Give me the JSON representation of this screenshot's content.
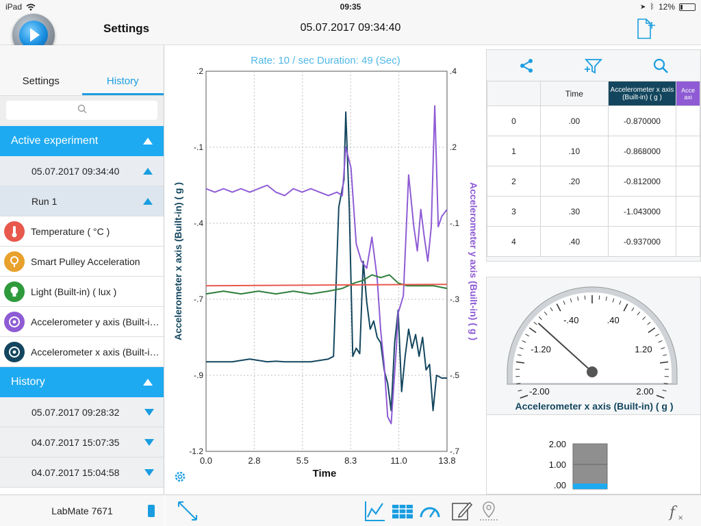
{
  "status": {
    "device": "iPad",
    "time": "09:35",
    "battery": "12%"
  },
  "header": {
    "title": "Settings",
    "date": "05.07.2017 09:34:40"
  },
  "sidebar": {
    "tabs": [
      {
        "label": "Settings"
      },
      {
        "label": "History"
      }
    ],
    "active_section": "Active experiment",
    "experiment_date": "05.07.2017 09:34:40",
    "run": "Run 1",
    "sensors": [
      {
        "label": "Temperature ( °C )",
        "color": "#e8584d"
      },
      {
        "label": "Smart Pulley Acceleration",
        "color": "#e8a12c"
      },
      {
        "label": "Light (Built-in) ( lux )",
        "color": "#2e9a3c"
      },
      {
        "label": "Accelerometer y axis (Built-in) ( g )",
        "color": "#8e5bd4"
      },
      {
        "label": "Accelerometer x axis (Built-in) ( g )",
        "color": "#13465e"
      }
    ],
    "history_section": "History",
    "history": [
      {
        "label": "05.07.2017 09:28:32"
      },
      {
        "label": "04.07.2017 15:07:35"
      },
      {
        "label": "04.07.2017 15:04:58"
      }
    ],
    "footer": "LabMate 7671"
  },
  "chart_data": {
    "type": "line",
    "title": "Rate: 10 / sec  Duration: 49 (Sec)",
    "xlabel": "Time",
    "ylabel_left": "Accelerometer x axis (Built-in) ( g )",
    "ylabel_right": "Accelerometer y axis (Built-in) ( g )",
    "x_ticks": [
      "0.0",
      "2.8",
      "5.5",
      "8.3",
      "11.0",
      "13.8"
    ],
    "y_left_ticks": [
      ".2",
      "-.1",
      "-.4",
      "-.7",
      "-.9",
      "-1.2"
    ],
    "y_right_ticks": [
      ".4",
      ".2",
      "-.1",
      "-.3",
      "-.5",
      "-.7"
    ],
    "xlim": [
      0,
      13.8
    ],
    "ylim_left": [
      -1.2,
      0.2
    ],
    "ylim_right": [
      -0.7,
      0.4
    ],
    "grid": true,
    "series": [
      {
        "color": "#13465e",
        "axis": "left",
        "x": [
          0,
          0.5,
          1,
          1.5,
          2,
          2.5,
          3,
          3.5,
          4,
          4.5,
          5,
          5.5,
          6,
          6.5,
          7,
          7.3,
          7.6,
          7.9,
          8.0,
          8.2,
          8.4,
          8.6,
          8.8,
          9.0,
          9.2,
          9.4,
          9.6,
          9.8,
          10.0,
          10.2,
          10.4,
          10.6,
          10.8,
          11.0,
          11.2,
          11.4,
          11.6,
          11.8,
          12.0,
          12.2,
          12.4,
          12.6,
          12.8,
          13.0,
          13.2,
          13.5,
          13.8
        ],
        "y": [
          -0.87,
          -0.87,
          -0.87,
          -0.87,
          -0.865,
          -0.86,
          -0.865,
          -0.87,
          -0.868,
          -0.87,
          -0.87,
          -0.87,
          -0.87,
          -0.865,
          -0.86,
          -0.85,
          -0.3,
          -0.2,
          0.05,
          -0.3,
          -0.85,
          -0.82,
          -0.84,
          -0.5,
          -0.65,
          -0.75,
          -0.72,
          -0.78,
          -0.8,
          -0.9,
          -0.95,
          -1.05,
          -0.8,
          -0.68,
          -0.98,
          -0.85,
          -0.75,
          -0.82,
          -0.77,
          -0.85,
          -0.78,
          -0.9,
          -0.88,
          -1.05,
          -0.92,
          -0.93,
          -0.93
        ]
      },
      {
        "color": "#8e5bd4",
        "axis": "right",
        "x": [
          0,
          0.5,
          1,
          1.5,
          2,
          2.5,
          3,
          3.5,
          4,
          4.5,
          5,
          5.5,
          6,
          6.5,
          7,
          7.5,
          7.8,
          8.0,
          8.3,
          8.6,
          8.9,
          9.2,
          9.5,
          9.8,
          10.0,
          10.2,
          10.4,
          10.6,
          10.9,
          11.0,
          11.3,
          11.6,
          11.9,
          12.1,
          12.3,
          12.5,
          12.7,
          12.9,
          13.1,
          13.3,
          13.5,
          13.8
        ],
        "y": [
          0.06,
          0.05,
          0.06,
          0.05,
          0.06,
          0.05,
          0.06,
          0.07,
          0.05,
          0.04,
          0.06,
          0.05,
          0.06,
          0.05,
          0.04,
          0.05,
          0.04,
          0.18,
          0.12,
          -0.1,
          -0.15,
          -0.17,
          -0.08,
          -0.2,
          -0.35,
          -0.45,
          -0.6,
          -0.62,
          -0.4,
          -0.3,
          -0.25,
          0.1,
          -0.05,
          -0.12,
          0.0,
          -0.08,
          -0.15,
          -0.05,
          0.3,
          -0.05,
          -0.02,
          0.0
        ]
      },
      {
        "color": "#2e7d3a",
        "axis": "left",
        "x": [
          0,
          1,
          2,
          3,
          4,
          5,
          6,
          7,
          7.8,
          8.5,
          9.0,
          9.5,
          10.0,
          10.5,
          11.0,
          11.5,
          12.0,
          12.5,
          13.0,
          13.8
        ],
        "y": [
          -0.62,
          -0.61,
          -0.62,
          -0.61,
          -0.62,
          -0.61,
          -0.62,
          -0.61,
          -0.6,
          -0.58,
          -0.57,
          -0.55,
          -0.56,
          -0.55,
          -0.58,
          -0.59,
          -0.59,
          -0.59,
          -0.59,
          -0.6
        ]
      },
      {
        "color": "#e8584d",
        "axis": "left",
        "x": [
          0,
          13.8
        ],
        "y": [
          -0.59,
          -0.585
        ]
      }
    ]
  },
  "table": {
    "headers": [
      "",
      "Time",
      "Accelerometer x axis (Built-in) ( g )",
      "Acce axi"
    ],
    "rows": [
      [
        "0",
        ".00",
        "-0.870000"
      ],
      [
        "1",
        ".10",
        "-0.868000"
      ],
      [
        "2",
        ".20",
        "-0.812000"
      ],
      [
        "3",
        ".30",
        "-1.043000"
      ],
      [
        "4",
        ".40",
        "-0.937000"
      ]
    ]
  },
  "gauge": {
    "title": "Accelerometer x axis (Built-in) ( g )",
    "labels": [
      "-2.00",
      "-1.20",
      "-.40",
      ".40",
      "1.20",
      "2.00"
    ],
    "min": -2.0,
    "max": 2.0,
    "value": -0.87
  },
  "bar_meter": {
    "labels": [
      "2.00",
      "1.00",
      ".00"
    ],
    "min": 0,
    "max": 2.0,
    "value": 0.0
  },
  "colors": {
    "accent": "#1a9de0",
    "xseries": "#13465e",
    "yseries": "#8e5bd4"
  }
}
